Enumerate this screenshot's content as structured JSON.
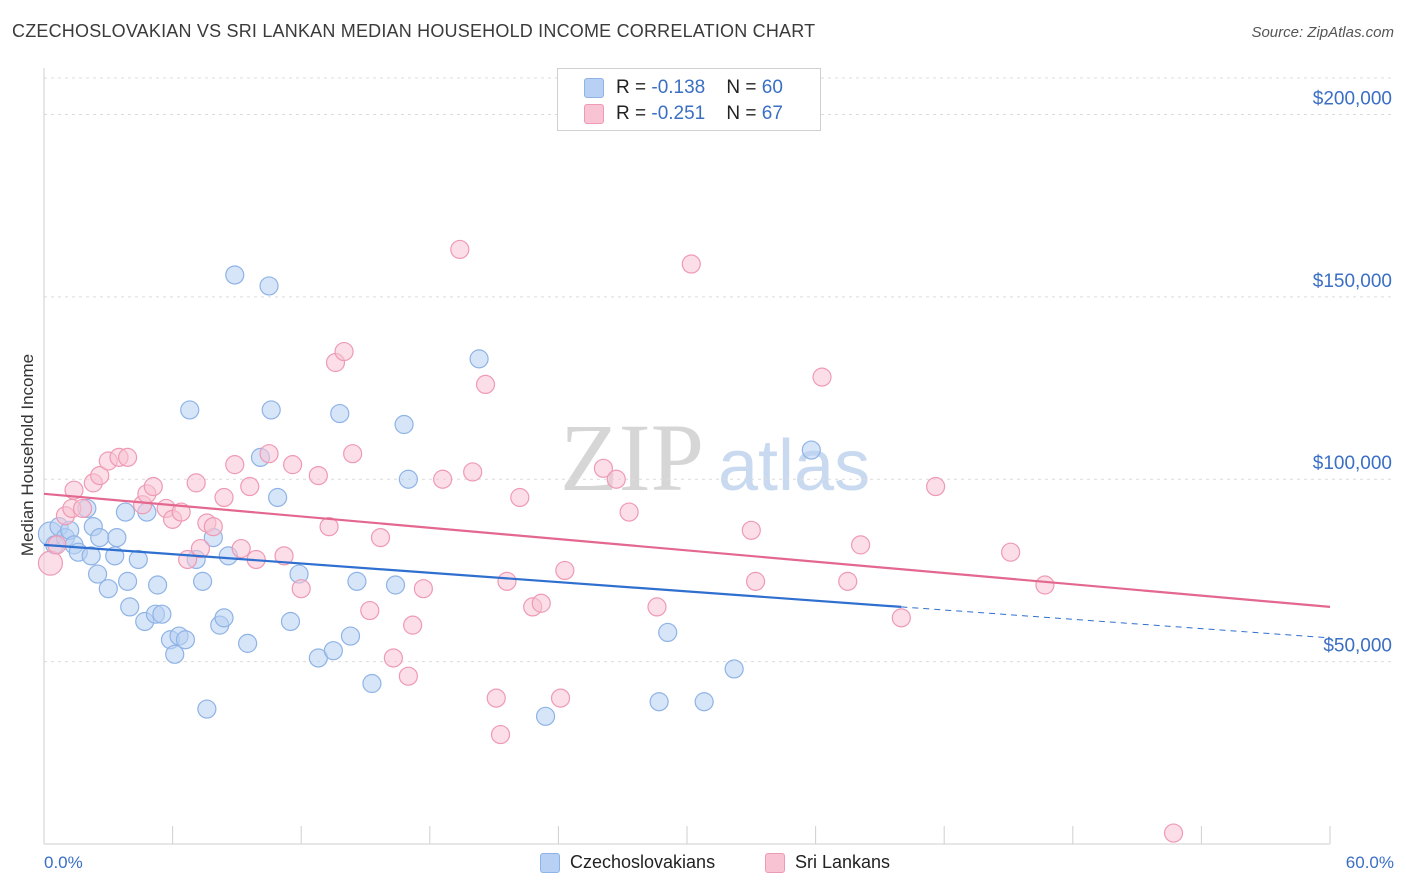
{
  "title": "CZECHOSLOVAKIAN VS SRI LANKAN MEDIAN HOUSEHOLD INCOME CORRELATION CHART",
  "source": "Source: ZipAtlas.com",
  "watermark": {
    "zip": "ZIP",
    "atlas": "atlas"
  },
  "colors": {
    "blue_fill": "#b7d0f3",
    "blue_stroke": "#8fb3e6",
    "blue_line": "#2f6fcf",
    "pink_fill": "#f8c3d3",
    "pink_stroke": "#ef9ab5",
    "pink_line": "#e3678f",
    "tick_label": "#3a6fc4"
  },
  "legend": {
    "rows": [
      {
        "r_label": "R = ",
        "r_value": "-0.138",
        "n_label": "N = ",
        "n_value": "60"
      },
      {
        "r_label": "R = ",
        "r_value": "-0.251",
        "n_label": "N = ",
        "n_value": "67"
      }
    ]
  },
  "chart_data": {
    "type": "scatter",
    "title": "CZECHOSLOVAKIAN VS SRI LANKAN MEDIAN HOUSEHOLD INCOME CORRELATION CHART",
    "xlabel": "",
    "ylabel": "Median Household Income",
    "xlim": [
      0,
      60
    ],
    "ylim": [
      0,
      210000
    ],
    "x_tick_labels": [
      "0.0%",
      "60.0%"
    ],
    "y_ticks": [
      50000,
      100000,
      150000,
      200000
    ],
    "y_tick_labels": [
      "$50,000",
      "$100,000",
      "$150,000",
      "$200,000"
    ],
    "grid": "horizontal dashed",
    "legend_position": "top-center",
    "series": [
      {
        "name": "Czechoslovakians",
        "r": -0.138,
        "n": 60,
        "trend": {
          "x0": 0,
          "y0": 82000,
          "x1": 40,
          "y1": 65000,
          "dashed_to_x": 60,
          "dashed_to_y": 56500
        },
        "points": [
          [
            0.3,
            85000
          ],
          [
            0.5,
            82000
          ],
          [
            0.7,
            87000
          ],
          [
            1.0,
            84000
          ],
          [
            1.2,
            86000
          ],
          [
            1.4,
            82000
          ],
          [
            1.6,
            80000
          ],
          [
            2.0,
            92000
          ],
          [
            2.2,
            79000
          ],
          [
            2.3,
            87000
          ],
          [
            2.5,
            74000
          ],
          [
            2.6,
            84000
          ],
          [
            3.0,
            70000
          ],
          [
            3.3,
            79000
          ],
          [
            3.4,
            84000
          ],
          [
            3.8,
            91000
          ],
          [
            3.9,
            72000
          ],
          [
            4.0,
            65000
          ],
          [
            4.4,
            78000
          ],
          [
            4.7,
            61000
          ],
          [
            4.8,
            91000
          ],
          [
            5.2,
            63000
          ],
          [
            5.3,
            71000
          ],
          [
            5.5,
            63000
          ],
          [
            5.9,
            56000
          ],
          [
            6.1,
            52000
          ],
          [
            6.3,
            57000
          ],
          [
            6.6,
            56000
          ],
          [
            6.8,
            119000
          ],
          [
            7.1,
            78000
          ],
          [
            7.4,
            72000
          ],
          [
            7.6,
            37000
          ],
          [
            7.9,
            84000
          ],
          [
            8.2,
            60000
          ],
          [
            8.4,
            62000
          ],
          [
            8.6,
            79000
          ],
          [
            8.9,
            156000
          ],
          [
            9.5,
            55000
          ],
          [
            10.1,
            106000
          ],
          [
            10.5,
            153000
          ],
          [
            10.6,
            119000
          ],
          [
            10.9,
            95000
          ],
          [
            11.5,
            61000
          ],
          [
            11.9,
            74000
          ],
          [
            12.8,
            51000
          ],
          [
            13.5,
            53000
          ],
          [
            13.8,
            118000
          ],
          [
            14.3,
            57000
          ],
          [
            14.6,
            72000
          ],
          [
            15.3,
            44000
          ],
          [
            16.4,
            71000
          ],
          [
            16.8,
            115000
          ],
          [
            17.0,
            100000
          ],
          [
            20.3,
            133000
          ],
          [
            23.4,
            35000
          ],
          [
            28.7,
            39000
          ],
          [
            29.1,
            58000
          ],
          [
            30.8,
            39000
          ],
          [
            32.2,
            48000
          ],
          [
            35.8,
            108000
          ]
        ]
      },
      {
        "name": "Sri Lankans",
        "r": -0.251,
        "n": 67,
        "trend": {
          "x0": 0,
          "y0": 96000,
          "x1": 60,
          "y1": 65000
        },
        "points": [
          [
            0.3,
            77000
          ],
          [
            0.6,
            82000
          ],
          [
            1.0,
            90000
          ],
          [
            1.3,
            92000
          ],
          [
            1.4,
            97000
          ],
          [
            1.8,
            92000
          ],
          [
            2.3,
            99000
          ],
          [
            2.6,
            101000
          ],
          [
            3.0,
            105000
          ],
          [
            3.5,
            106000
          ],
          [
            3.9,
            106000
          ],
          [
            4.6,
            93000
          ],
          [
            4.8,
            96000
          ],
          [
            5.1,
            98000
          ],
          [
            5.7,
            92000
          ],
          [
            6.0,
            89000
          ],
          [
            6.4,
            91000
          ],
          [
            6.7,
            78000
          ],
          [
            7.1,
            99000
          ],
          [
            7.3,
            81000
          ],
          [
            7.6,
            88000
          ],
          [
            7.9,
            87000
          ],
          [
            8.4,
            95000
          ],
          [
            8.9,
            104000
          ],
          [
            9.2,
            81000
          ],
          [
            9.6,
            98000
          ],
          [
            9.9,
            78000
          ],
          [
            10.5,
            107000
          ],
          [
            11.2,
            79000
          ],
          [
            11.6,
            104000
          ],
          [
            12.0,
            70000
          ],
          [
            12.8,
            101000
          ],
          [
            13.3,
            87000
          ],
          [
            13.6,
            132000
          ],
          [
            14.0,
            135000
          ],
          [
            14.4,
            107000
          ],
          [
            15.2,
            64000
          ],
          [
            15.7,
            84000
          ],
          [
            16.3,
            51000
          ],
          [
            17.0,
            46000
          ],
          [
            17.2,
            60000
          ],
          [
            17.7,
            70000
          ],
          [
            18.6,
            100000
          ],
          [
            19.4,
            163000
          ],
          [
            20.0,
            102000
          ],
          [
            20.6,
            126000
          ],
          [
            21.1,
            40000
          ],
          [
            21.3,
            30000
          ],
          [
            21.6,
            72000
          ],
          [
            22.2,
            95000
          ],
          [
            22.8,
            65000
          ],
          [
            23.2,
            66000
          ],
          [
            24.1,
            40000
          ],
          [
            24.3,
            75000
          ],
          [
            26.1,
            103000
          ],
          [
            26.7,
            100000
          ],
          [
            27.3,
            91000
          ],
          [
            28.6,
            65000
          ],
          [
            30.2,
            159000
          ],
          [
            33.0,
            86000
          ],
          [
            33.2,
            72000
          ],
          [
            36.3,
            128000
          ],
          [
            37.5,
            72000
          ],
          [
            38.1,
            82000
          ],
          [
            40.0,
            62000
          ],
          [
            41.6,
            98000
          ],
          [
            45.1,
            80000
          ],
          [
            46.7,
            71000
          ],
          [
            52.7,
            3000
          ]
        ]
      }
    ]
  }
}
